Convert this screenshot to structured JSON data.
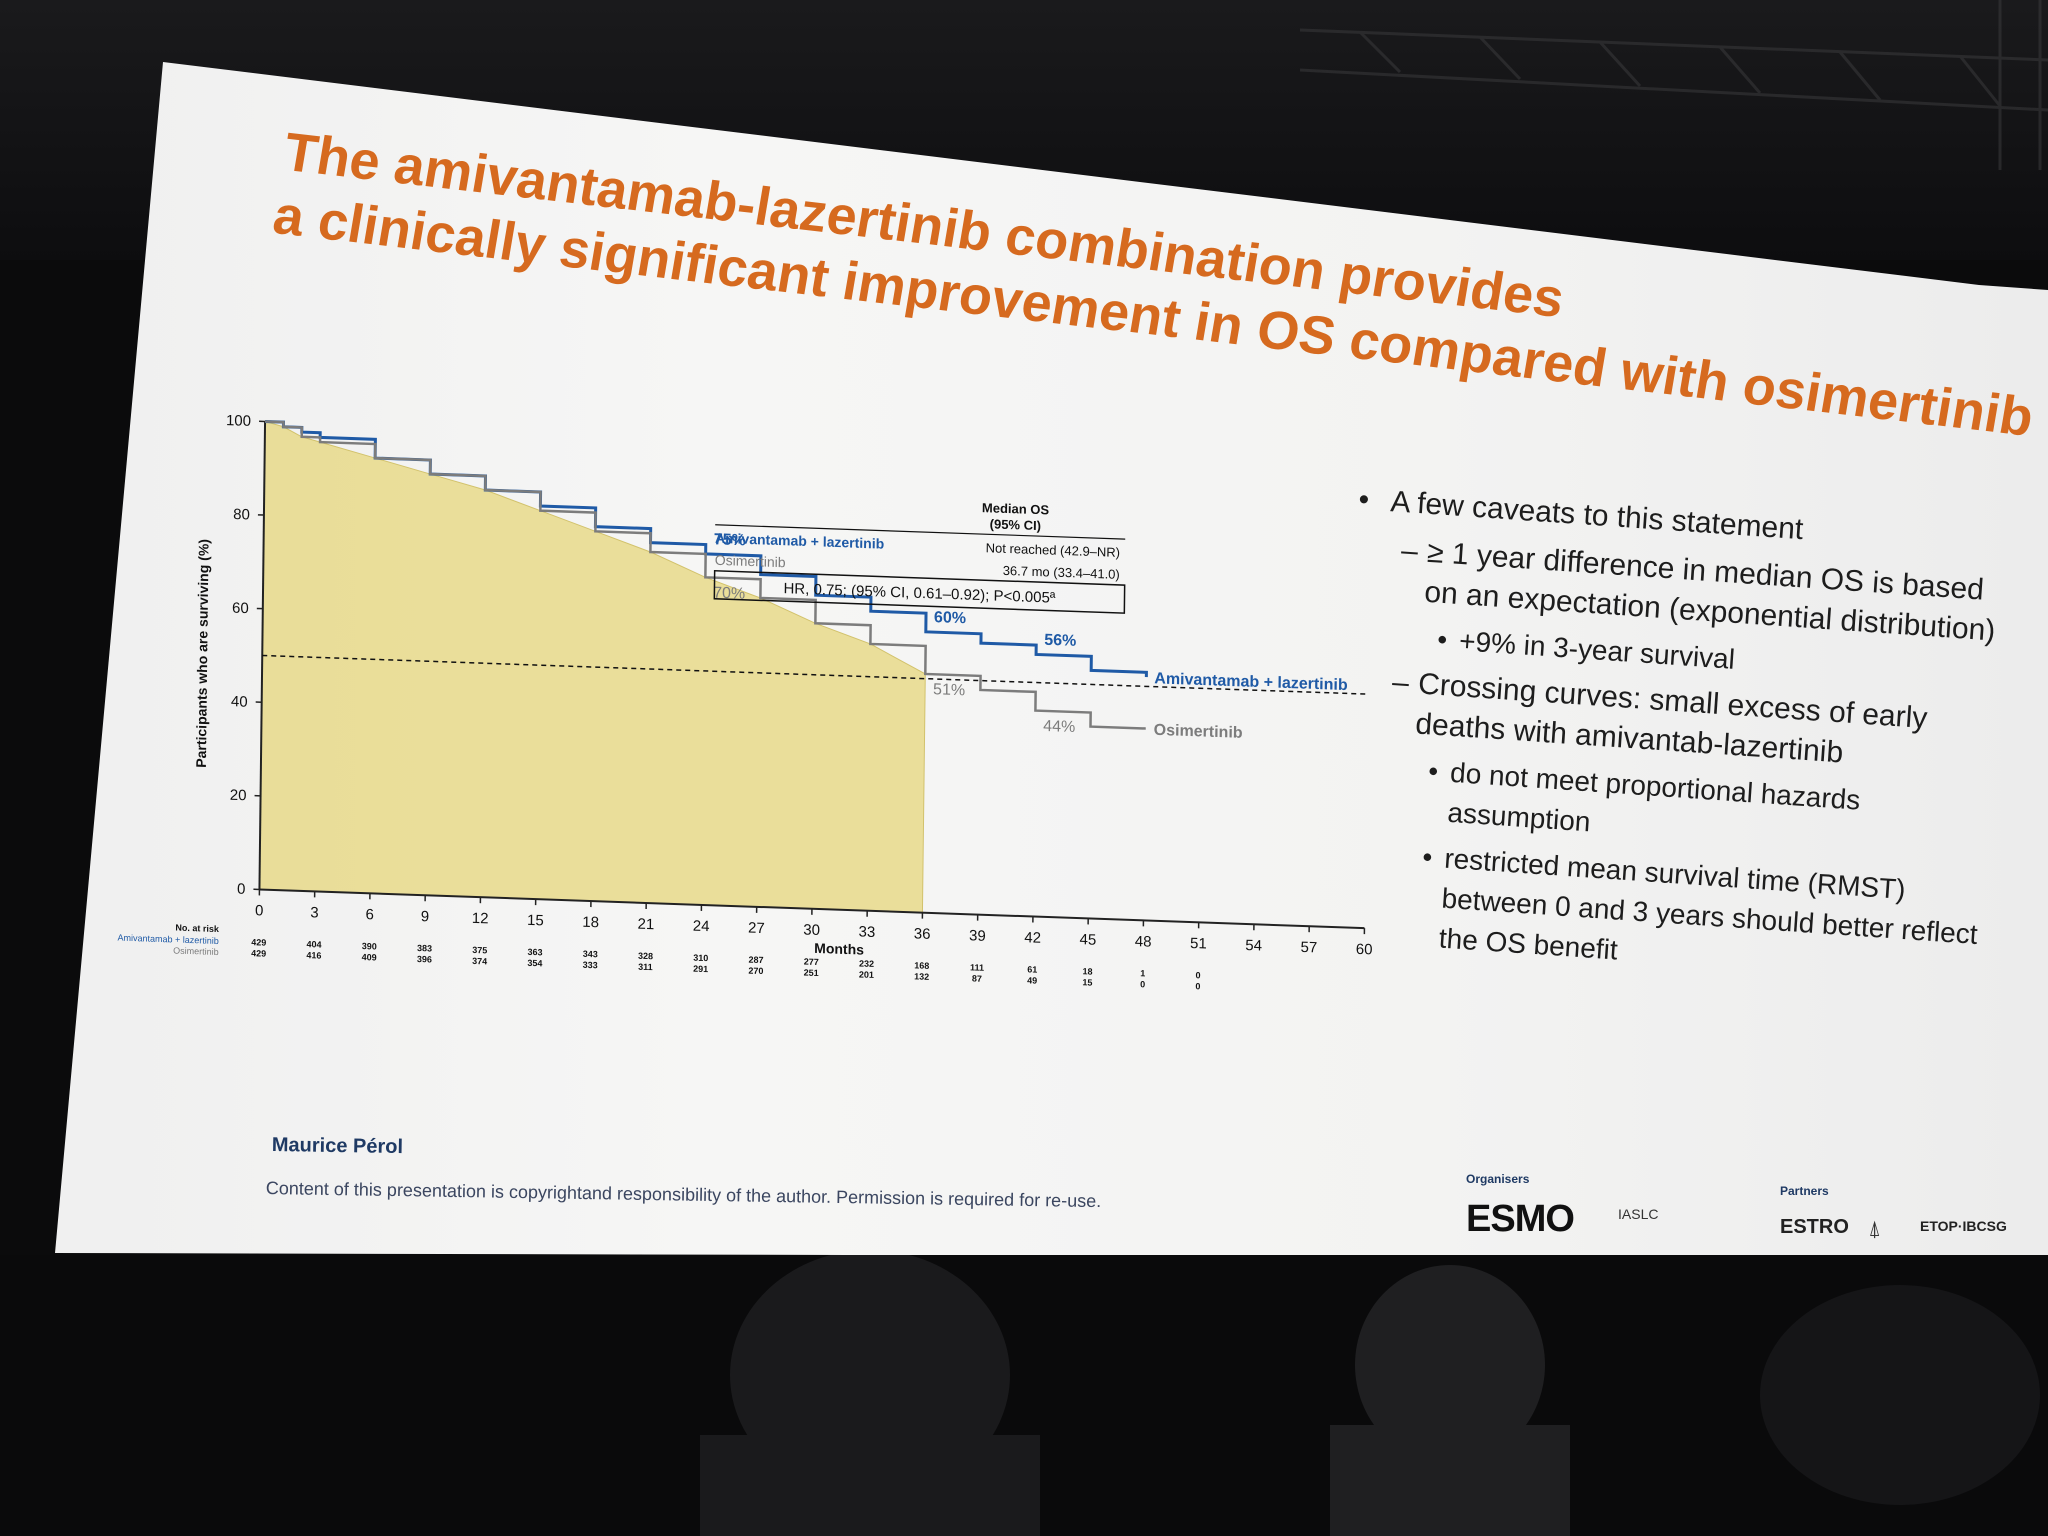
{
  "slide": {
    "title_lines": [
      "The amivantamab-lazertinib combination provides",
      "a clinically significant improvement in OS compared with osimertinib"
    ],
    "author": "Maurice Pérol",
    "copyright": "Content of this presentation is copyrightand responsibility of the author. Permission is required for re-use.",
    "bullets": {
      "main": "A few caveats to this statement",
      "dash1": "≥ 1 year difference in median OS is based on an expectation (exponential distribution)",
      "dash1_sub": "+9% in 3-year survival",
      "dash2": "Crossing curves: small excess of early deaths with amivantab-lazertinib",
      "dash2_sub1": "do not meet proportional hazards assumption",
      "dash2_sub2": "restricted mean survival time (RMST) between 0 and 3 years should better reflect the OS benefit"
    },
    "logos": {
      "organisers_label": "Organisers",
      "partners_label": "Partners",
      "esmo": "ESMO",
      "iaslc": "IASLC",
      "estro": "ESTRO",
      "etop": "ETOP·IBCSG"
    }
  },
  "chart_data": {
    "type": "line",
    "ylabel": "Participants who are surviving (%)",
    "xlabel": "Months",
    "xlim": [
      0,
      60
    ],
    "ylim": [
      0,
      100
    ],
    "xticks": [
      0,
      3,
      6,
      9,
      12,
      15,
      18,
      21,
      24,
      27,
      30,
      33,
      36,
      39,
      42,
      45,
      48,
      51,
      54,
      57,
      60
    ],
    "yticks": [
      0,
      20,
      40,
      60,
      80,
      100
    ],
    "shaded_region_months": [
      0,
      36
    ],
    "median_reference_percent": 50,
    "series": [
      {
        "name": "Amivantamab + lazertinib",
        "color": "#1f5aa6",
        "x": [
          0,
          1,
          2,
          3,
          6,
          9,
          12,
          15,
          18,
          21,
          24,
          27,
          30,
          33,
          36,
          39,
          42,
          45,
          48
        ],
        "y": [
          100,
          99,
          98,
          97,
          93,
          90,
          87,
          84,
          80,
          77,
          75,
          71,
          67,
          64,
          60,
          58,
          56,
          53,
          52
        ],
        "annotations": [
          {
            "x": 24,
            "label": "75%"
          },
          {
            "x": 36,
            "label": "60%"
          },
          {
            "x": 42,
            "label": "56%"
          }
        ]
      },
      {
        "name": "Osimertinib",
        "color": "#7c7c7c",
        "x": [
          0,
          1,
          2,
          3,
          6,
          9,
          12,
          15,
          18,
          21,
          24,
          27,
          30,
          33,
          36,
          39,
          42,
          45,
          48
        ],
        "y": [
          100,
          99,
          97,
          96,
          93,
          90,
          87,
          83,
          79,
          75,
          70,
          66,
          61,
          57,
          51,
          48,
          44,
          41,
          41
        ],
        "annotations": [
          {
            "x": 24,
            "label": "70%"
          },
          {
            "x": 36,
            "label": "51%"
          },
          {
            "x": 42,
            "label": "44%"
          }
        ]
      }
    ],
    "legend_box": {
      "header": "Median OS",
      "header2": "(95% CI)",
      "rows": [
        {
          "name": "Amivantamab + lazertinib",
          "value": "Not reached (42.9–NR)"
        },
        {
          "name": "Osimertinib",
          "value": "36.7 mo (33.4–41.0)"
        }
      ],
      "hr_text": "HR, 0.75; (95% CI, 0.61–0.92); P<0.005ª"
    },
    "at_risk": {
      "label": "No. at risk",
      "months": [
        0,
        3,
        6,
        9,
        12,
        15,
        18,
        21,
        24,
        27,
        30,
        33,
        36,
        39,
        42,
        45,
        48,
        51
      ],
      "rows": [
        {
          "name": "Amivantamab + lazertinib",
          "values": [
            "429",
            "404",
            "390",
            "383",
            "375",
            "363",
            "343",
            "328",
            "310",
            "287",
            "277",
            "232",
            "168",
            "111",
            "61",
            "18",
            "1",
            "0"
          ]
        },
        {
          "name": "Osimertinib",
          "values": [
            "429",
            "416",
            "409",
            "396",
            "374",
            "354",
            "333",
            "311",
            "291",
            "270",
            "251",
            "201",
            "132",
            "87",
            "49",
            "15",
            "0",
            "0"
          ]
        }
      ]
    }
  }
}
